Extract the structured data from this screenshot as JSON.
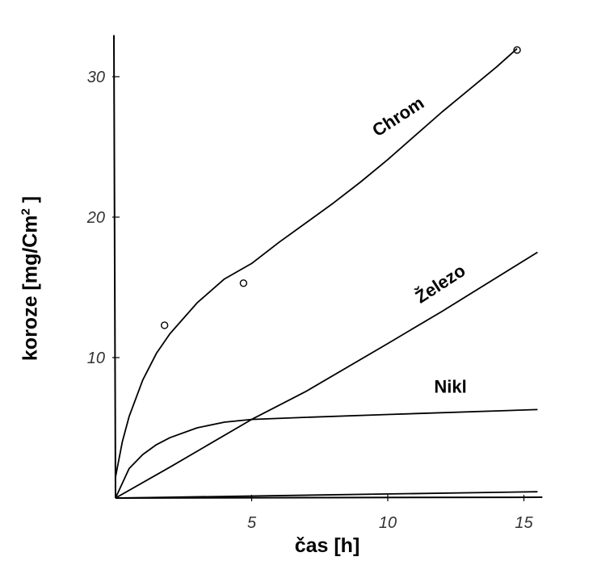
{
  "chart_data": {
    "type": "line",
    "title": "",
    "xlabel": "čas [h]",
    "ylabel": {
      "prefix": "koroze [mg/Cm",
      "sup": "2",
      "suffix": " ]"
    },
    "xlim": [
      0,
      15.5
    ],
    "ylim": [
      0,
      32.5
    ],
    "x_ticks": [
      5,
      10,
      15
    ],
    "y_ticks": [
      10,
      20,
      30
    ],
    "grid": false,
    "legend": "none",
    "series": [
      {
        "name": "Chrom",
        "x": [
          0,
          0.25,
          0.5,
          1,
          1.5,
          2,
          3,
          4,
          5,
          6,
          7,
          8,
          9,
          10,
          11,
          12,
          13,
          14,
          14.75
        ],
        "y": [
          1.5,
          4.0,
          5.8,
          8.4,
          10.3,
          11.7,
          13.9,
          15.6,
          16.7,
          18.2,
          19.6,
          21.0,
          22.5,
          24.1,
          25.8,
          27.5,
          29.1,
          30.7,
          32.0
        ]
      },
      {
        "name": "Železo",
        "x": [
          0,
          2,
          5,
          7,
          10,
          12,
          15.5
        ],
        "y": [
          0,
          2.2,
          5.6,
          7.6,
          11.0,
          13.3,
          17.5
        ]
      },
      {
        "name": "Nikl",
        "x": [
          0,
          0.5,
          1,
          1.5,
          2,
          3,
          4,
          5,
          7,
          10,
          15.5
        ],
        "y": [
          0,
          2.1,
          3.1,
          3.8,
          4.3,
          5.0,
          5.4,
          5.6,
          5.75,
          5.95,
          6.3
        ]
      },
      {
        "name": "",
        "x": [
          0,
          15.5
        ],
        "y": [
          0,
          0.45
        ]
      }
    ],
    "markers": [
      {
        "x": 1.8,
        "y": 12.3
      },
      {
        "x": 4.7,
        "y": 15.3
      },
      {
        "x": 14.75,
        "y": 31.9
      }
    ]
  }
}
